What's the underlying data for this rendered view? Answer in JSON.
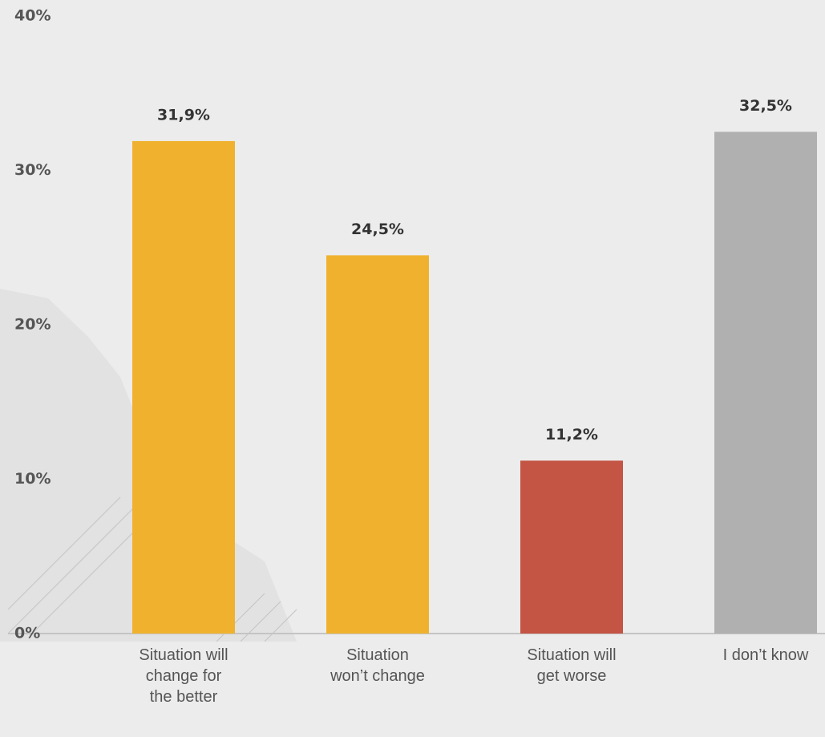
{
  "chart_data": {
    "type": "bar",
    "categories": [
      "Situation will change for the better",
      "Situation won’t change",
      "Situation will get worse",
      "I don’t know"
    ],
    "values": [
      31.9,
      24.5,
      11.2,
      32.5
    ],
    "value_labels": [
      "31,9%",
      "24,5%",
      "11,2%",
      "32,5%"
    ],
    "colors": [
      "#f0b22e",
      "#f0b22e",
      "#c45444",
      "#b0b0b0"
    ],
    "ylim": [
      0,
      40
    ],
    "yticks": [
      {
        "value": 0,
        "label": "0%"
      },
      {
        "value": 10,
        "label": "10%"
      },
      {
        "value": 20,
        "label": "20%"
      },
      {
        "value": 30,
        "label": "30%"
      },
      {
        "value": 40,
        "label": "40%"
      }
    ]
  }
}
